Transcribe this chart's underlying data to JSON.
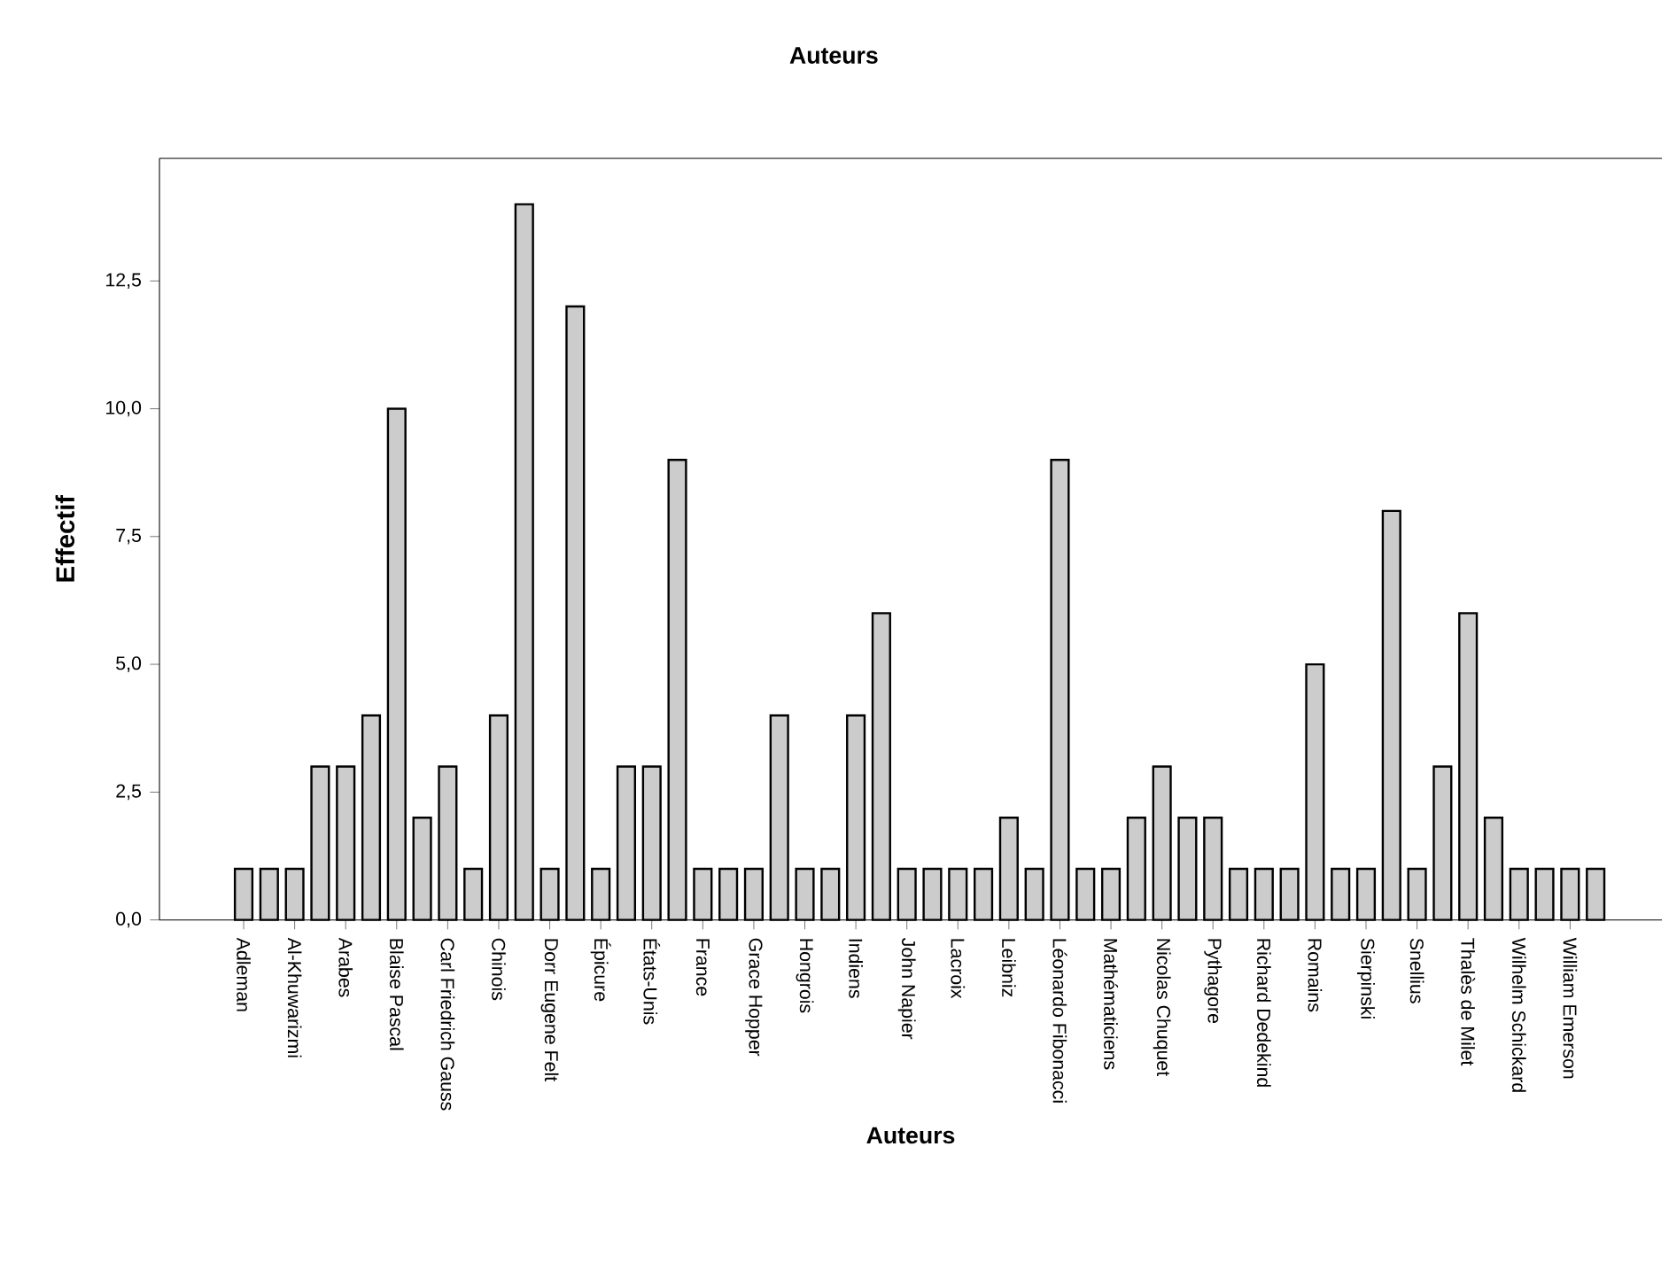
{
  "chart_data": {
    "type": "bar",
    "title": "Auteurs",
    "xlabel": "Auteurs",
    "ylabel": "Effectif",
    "categories": [
      "Adleman",
      null,
      "Al-Khuwarizmi",
      null,
      "Arabes",
      null,
      "Blaise Pascal",
      null,
      "Carl Friedrich Gauss",
      null,
      "Chinois",
      null,
      "Dorr Eugene Felt",
      null,
      "Épicure",
      null,
      "États-Unis",
      null,
      "France",
      null,
      "Grace Hopper",
      null,
      "Hongrois",
      null,
      "Indiens",
      null,
      "John Napier",
      null,
      "Lacroix",
      null,
      "Leibniz",
      null,
      "Léonardo Fibonacci",
      null,
      "Mathématiciens",
      null,
      "Nicolas Chuquet",
      null,
      "Pythagore",
      null,
      "Richard Dedekind",
      null,
      "Romains",
      null,
      "Sierpinski",
      null,
      "Snellius",
      null,
      "Thalès de Milet",
      null,
      "Wilhelm Schickard",
      null,
      "William Emerson",
      null
    ],
    "values": [
      1,
      1,
      1,
      3,
      3,
      4,
      10,
      2,
      3,
      1,
      4,
      14,
      1,
      12,
      1,
      3,
      3,
      9,
      1,
      1,
      1,
      4,
      1,
      1,
      4,
      6,
      1,
      1,
      1,
      1,
      2,
      1,
      9,
      1,
      1,
      2,
      3,
      2,
      2,
      1,
      1,
      1,
      5,
      1,
      1,
      8,
      1,
      3,
      6,
      2,
      1,
      1,
      1,
      1
    ],
    "color": "#cccccc",
    "ylim": [
      0,
      14.9
    ],
    "yticks": [
      {
        "value": 0,
        "label": "0,0"
      },
      {
        "value": 2.5,
        "label": "2,5"
      },
      {
        "value": 5,
        "label": "5,0"
      },
      {
        "value": 7.5,
        "label": "7,5"
      },
      {
        "value": 10,
        "label": "10,0"
      },
      {
        "value": 12.5,
        "label": "12,5"
      }
    ],
    "grid": false
  }
}
